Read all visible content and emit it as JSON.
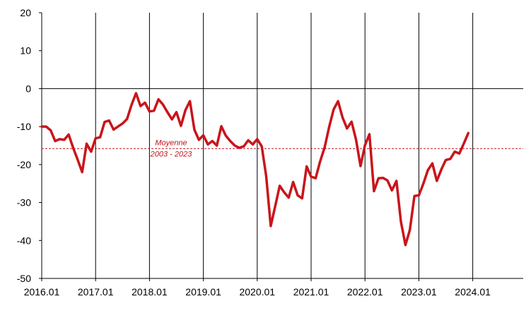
{
  "chart_data": {
    "type": "line",
    "title": "",
    "xlabel": "",
    "ylabel": "",
    "ylim": [
      -50,
      20
    ],
    "yticks": [
      20,
      10,
      0,
      -10,
      -20,
      -30,
      -40,
      -50
    ],
    "x_tick_labels": [
      "2016.01",
      "2017.01",
      "2018.01",
      "2019.01",
      "2020.01",
      "2021.01",
      "2022.01",
      "2023.01",
      "2024.01"
    ],
    "x_start": "2016.01",
    "frequency": "monthly",
    "grid": {
      "x_major": true,
      "y": false
    },
    "reference_line": {
      "value": -15.8,
      "label_line1": "Moyenne",
      "label_line2": "2003 - 2023",
      "color": "#c0141c"
    },
    "series": [
      {
        "color": "#c8151b",
        "values": [
          -10,
          -10,
          -11,
          -13.8,
          -13.3,
          -13.5,
          -12.1,
          -15.6,
          -18.7,
          -22,
          -14.5,
          -16.6,
          -13.1,
          -12.8,
          -8.8,
          -8.4,
          -10.8,
          -10,
          -9.2,
          -8,
          -4.3,
          -1.2,
          -4.6,
          -3.7,
          -6,
          -5.8,
          -2.8,
          -4.2,
          -6.2,
          -8.1,
          -6.2,
          -9.8,
          -5.7,
          -3.3,
          -10.8,
          -13.5,
          -12.3,
          -14.7,
          -13.8,
          -15,
          -9.9,
          -12.4,
          -13.8,
          -15,
          -15.6,
          -15.2,
          -13.6,
          -14.7,
          -13.3,
          -15.2,
          -23.1,
          -36.2,
          -31,
          -25.6,
          -27.3,
          -28.7,
          -24.6,
          -28.1,
          -28.9,
          -20.5,
          -23.2,
          -23.6,
          -19.2,
          -15.5,
          -10.2,
          -5.5,
          -3.3,
          -7.6,
          -10.5,
          -8.7,
          -13.4,
          -20.4,
          -14.9,
          -12,
          -27,
          -23.6,
          -23.5,
          -24.2,
          -26.8,
          -24.3,
          -35,
          -41.2,
          -37.2,
          -28.3,
          -28.1,
          -25,
          -21.5,
          -19.7,
          -24.3,
          -21.3,
          -18.8,
          -18.5,
          -16.6,
          -17.1,
          -14.5,
          -11.7
        ]
      }
    ]
  }
}
